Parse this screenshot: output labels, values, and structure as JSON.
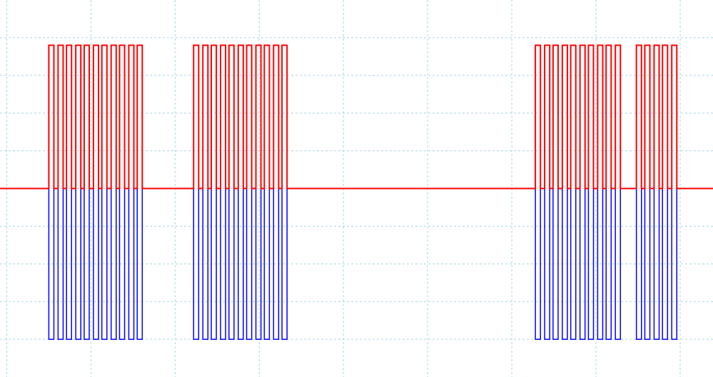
{
  "chart_data": {
    "type": "line",
    "x": [
      -0.08,
      0.5,
      0.5,
      0.56,
      0.56,
      0.61,
      0.61,
      0.67,
      0.67,
      0.71,
      0.71,
      0.77,
      0.77,
      0.82,
      0.82,
      0.88,
      0.88,
      0.92,
      0.92,
      0.98,
      0.98,
      1.03,
      1.03,
      1.09,
      1.09,
      1.13,
      1.13,
      1.19,
      1.19,
      1.24,
      1.24,
      1.3,
      1.3,
      1.34,
      1.34,
      1.4,
      1.4,
      1.45,
      1.45,
      1.51,
      1.51,
      1.55,
      1.55,
      1.61,
      1.61,
      2.22,
      2.22,
      2.28,
      2.28,
      2.33,
      2.33,
      2.39,
      2.39,
      2.43,
      2.43,
      2.49,
      2.49,
      2.54,
      2.54,
      2.6,
      2.6,
      2.64,
      2.64,
      2.7,
      2.7,
      2.75,
      2.75,
      2.81,
      2.81,
      2.85,
      2.85,
      2.91,
      2.91,
      2.96,
      2.96,
      3.02,
      3.02,
      3.06,
      3.06,
      3.12,
      3.12,
      3.17,
      3.17,
      3.23,
      3.23,
      3.27,
      3.27,
      3.33,
      3.33,
      6.28,
      6.28,
      6.34,
      6.34,
      6.39,
      6.39,
      6.45,
      6.45,
      6.49,
      6.49,
      6.55,
      6.55,
      6.6,
      6.6,
      6.66,
      6.66,
      6.7,
      6.7,
      6.76,
      6.76,
      6.81,
      6.81,
      6.87,
      6.87,
      6.91,
      6.91,
      6.97,
      6.97,
      7.02,
      7.02,
      7.08,
      7.08,
      7.12,
      7.12,
      7.18,
      7.18,
      7.23,
      7.23,
      7.29,
      7.29,
      7.48,
      7.48,
      7.54,
      7.54,
      7.58,
      7.58,
      7.64,
      7.64,
      7.69,
      7.69,
      7.75,
      7.75,
      7.79,
      7.79,
      7.85,
      7.85,
      7.9,
      7.9,
      7.96,
      7.96,
      8.39
    ],
    "series": [
      {
        "color": "#ff0000",
        "values": [
          0,
          0,
          3.8,
          3.8,
          0,
          0,
          3.8,
          3.8,
          0,
          0,
          3.8,
          3.8,
          0,
          0,
          3.8,
          3.8,
          0,
          0,
          3.8,
          3.8,
          0,
          0,
          3.8,
          3.8,
          0,
          0,
          3.8,
          3.8,
          0,
          0,
          3.8,
          3.8,
          0,
          0,
          3.8,
          3.8,
          0,
          0,
          3.8,
          3.8,
          0,
          0,
          3.8,
          3.8,
          0,
          0,
          3.8,
          3.8,
          0,
          0,
          3.8,
          3.8,
          0,
          0,
          3.8,
          3.8,
          0,
          0,
          3.8,
          3.8,
          0,
          0,
          3.8,
          3.8,
          0,
          0,
          3.8,
          3.8,
          0,
          0,
          3.8,
          3.8,
          0,
          0,
          3.8,
          3.8,
          0,
          0,
          3.8,
          3.8,
          0,
          0,
          3.8,
          3.8,
          0,
          0,
          3.8,
          3.8,
          0,
          0,
          3.8,
          3.8,
          0,
          0,
          3.8,
          3.8,
          0,
          0,
          3.8,
          3.8,
          0,
          0,
          3.8,
          3.8,
          0,
          0,
          3.8,
          3.8,
          0,
          0,
          3.8,
          3.8,
          0,
          0,
          3.8,
          3.8,
          0,
          0,
          3.8,
          3.8,
          0,
          0,
          3.8,
          3.8,
          0,
          0,
          3.8,
          3.8,
          0,
          0,
          3.8,
          3.8,
          0,
          0,
          3.8,
          3.8,
          0,
          0,
          3.8,
          3.8,
          0,
          0,
          3.8,
          3.8,
          0,
          0,
          3.8,
          3.8,
          0,
          0
        ]
      },
      {
        "color": "#0000ff",
        "values": [
          0,
          0,
          -4,
          -4,
          0,
          0,
          -4,
          -4,
          0,
          0,
          -4,
          -4,
          0,
          0,
          -4,
          -4,
          0,
          0,
          -4,
          -4,
          0,
          0,
          -4,
          -4,
          0,
          0,
          -4,
          -4,
          0,
          0,
          -4,
          -4,
          0,
          0,
          -4,
          -4,
          0,
          0,
          -4,
          -4,
          0,
          0,
          -4,
          -4,
          0,
          0,
          -4,
          -4,
          0,
          0,
          -4,
          -4,
          0,
          0,
          -4,
          -4,
          0,
          0,
          -4,
          -4,
          0,
          0,
          -4,
          -4,
          0,
          0,
          -4,
          -4,
          0,
          0,
          -4,
          -4,
          0,
          0,
          -4,
          -4,
          0,
          0,
          -4,
          -4,
          0,
          0,
          -4,
          -4,
          0,
          0,
          -4,
          -4,
          0,
          0,
          -4,
          -4,
          0,
          0,
          -4,
          -4,
          0,
          0,
          -4,
          -4,
          0,
          0,
          -4,
          -4,
          0,
          0,
          -4,
          -4,
          0,
          0,
          -4,
          -4,
          0,
          0,
          -4,
          -4,
          0,
          0,
          -4,
          -4,
          0,
          0,
          -4,
          -4,
          0,
          0,
          -4,
          -4,
          0,
          0,
          -4,
          -4,
          0,
          0,
          -4,
          -4,
          0,
          0,
          -4,
          -4,
          0,
          0,
          -4,
          -4,
          0,
          0,
          -4,
          -4,
          0,
          0
        ]
      }
    ],
    "xlim": [
      -0.08,
      8.39
    ],
    "ylim": [
      -5,
      5
    ],
    "xticks": [
      0,
      1,
      2,
      3,
      4,
      5,
      6,
      7,
      8
    ],
    "yticks": [
      -4,
      -3,
      -2,
      -1,
      0,
      1,
      2,
      3,
      4
    ],
    "grid": true
  }
}
